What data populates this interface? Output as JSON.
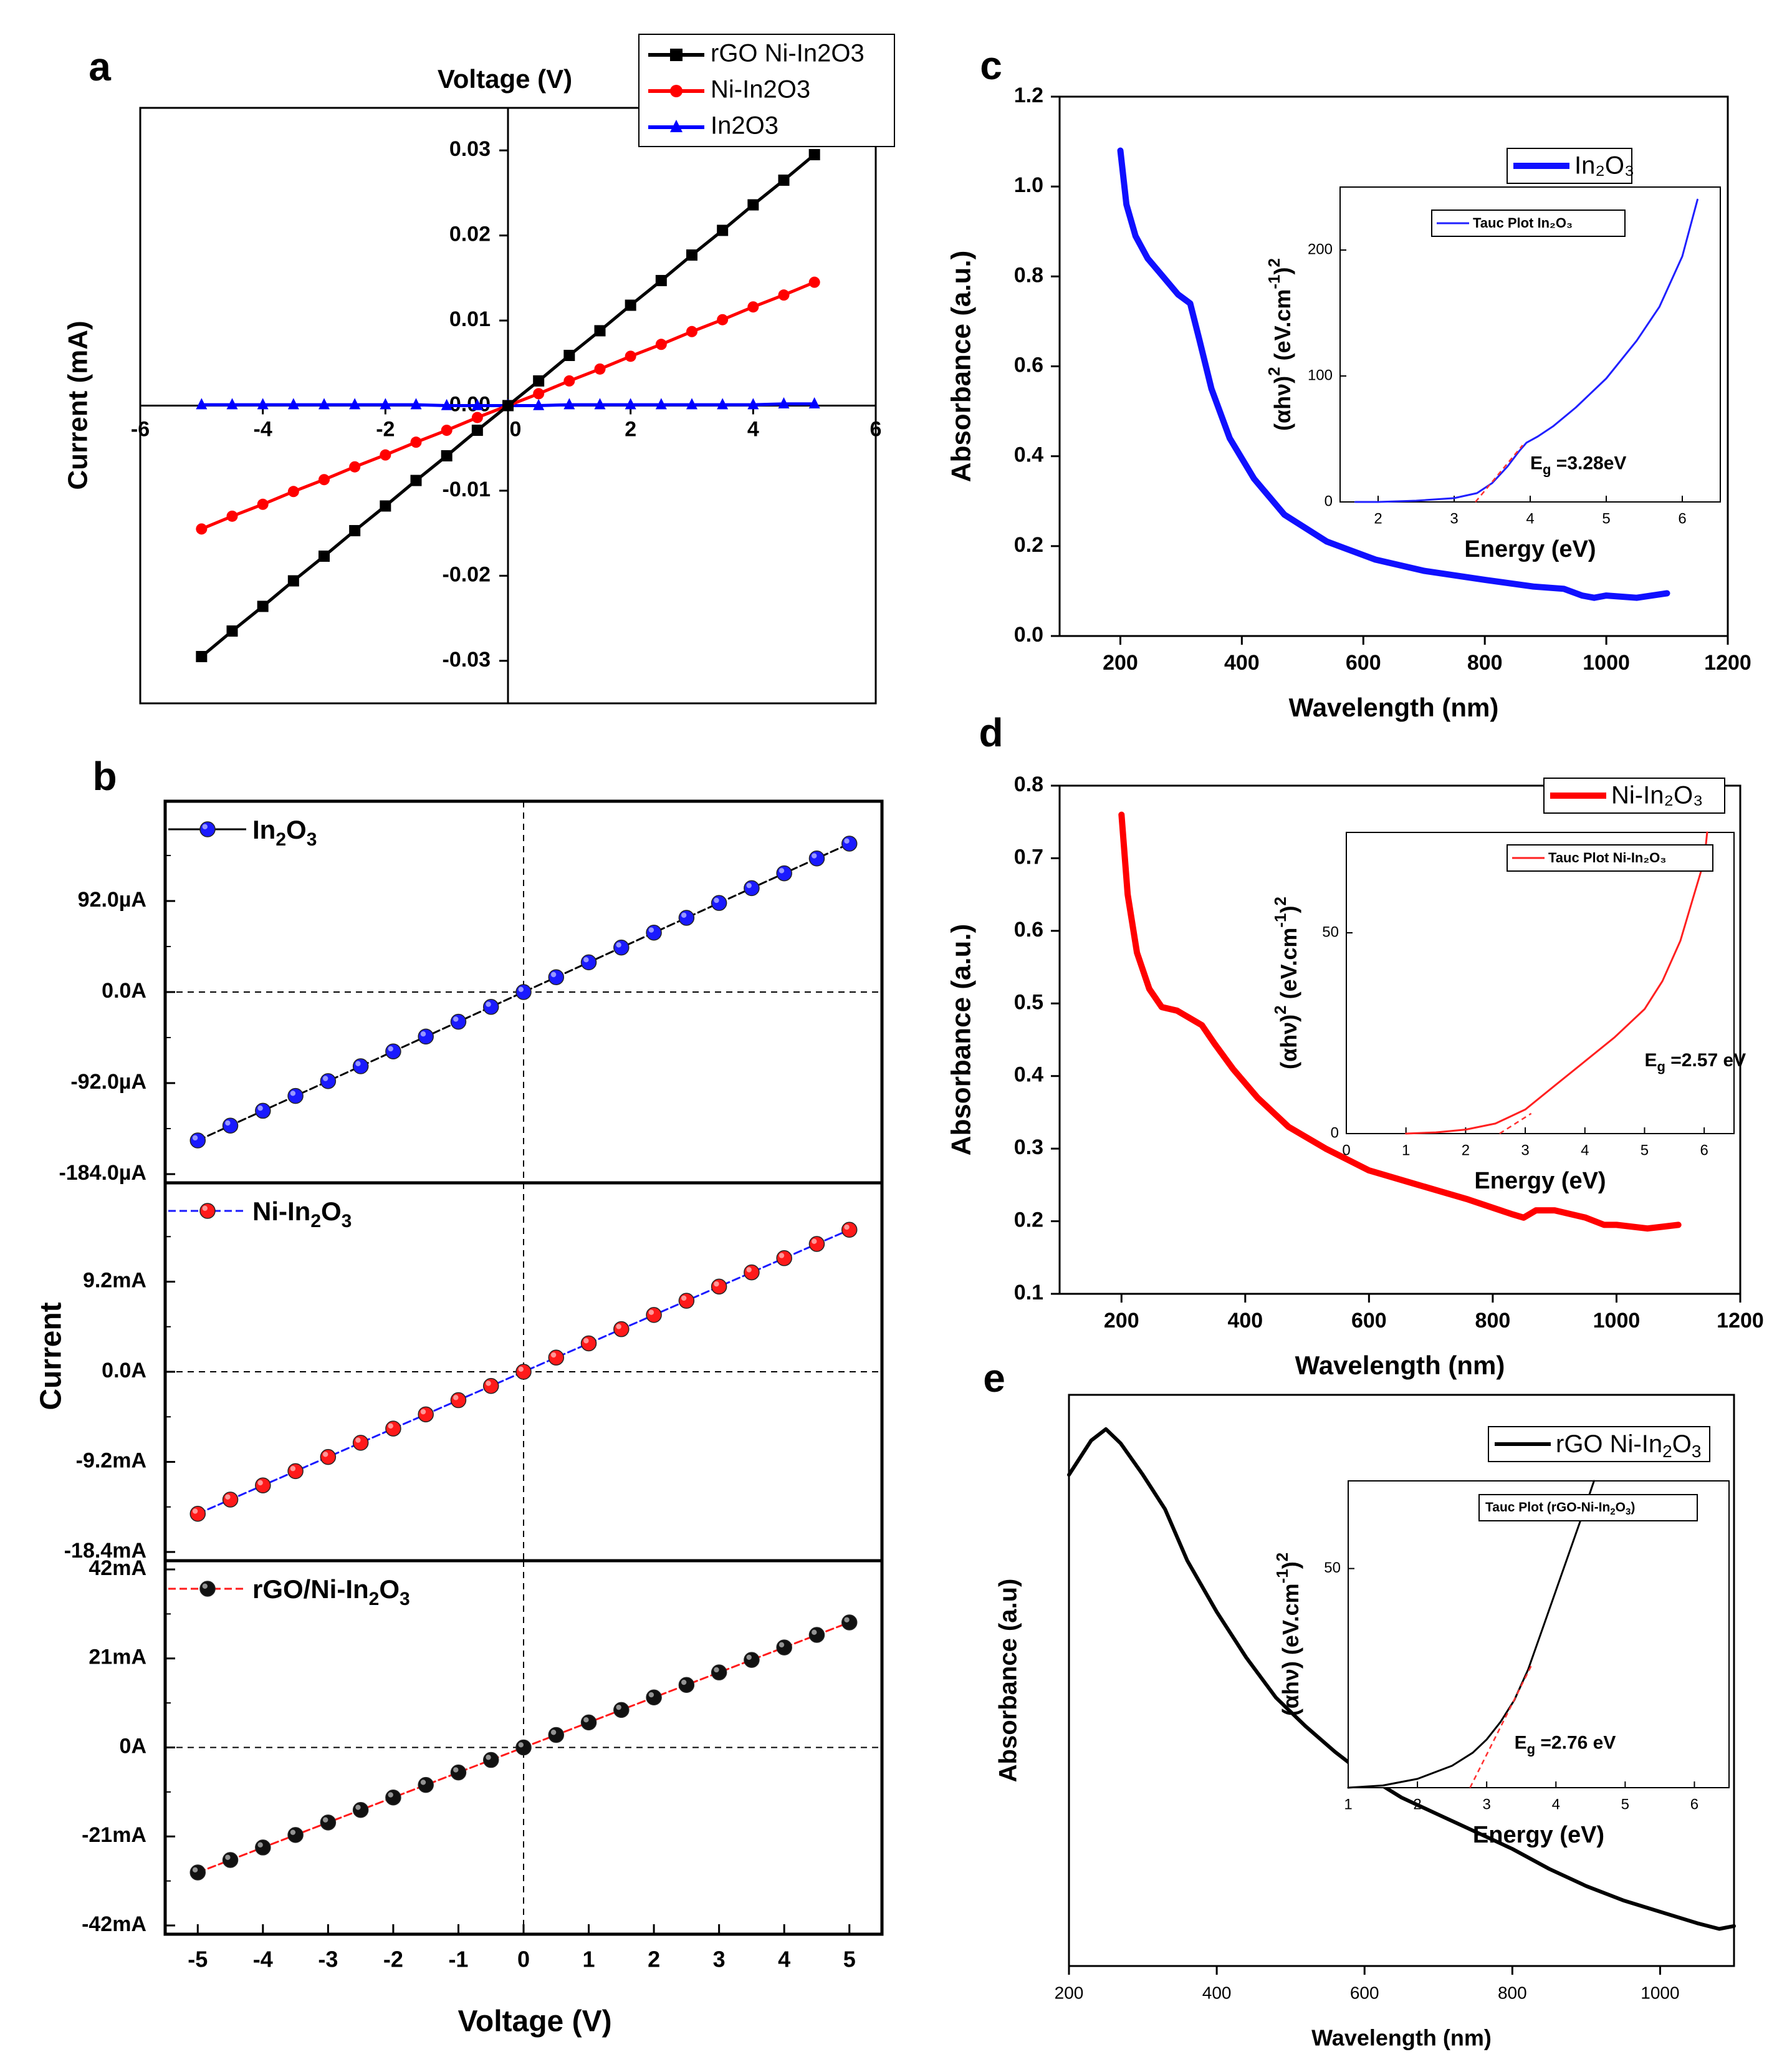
{
  "chart_data": [
    {
      "panel": "a",
      "type": "line",
      "title": "",
      "xlabel": "Voltage (V)",
      "ylabel": "Current (mA)",
      "xlim": [
        -6,
        6
      ],
      "ylim": [
        -0.035,
        0.035
      ],
      "xticks": [
        -6,
        -4,
        -2,
        0,
        2,
        4,
        6
      ],
      "xtick_labels": [
        "-6",
        "-4",
        "-2",
        "0",
        "2",
        "4",
        "6"
      ],
      "yticks": [
        -0.03,
        -0.02,
        -0.01,
        0,
        0.01,
        0.02,
        0.03
      ],
      "ytick_labels": [
        "-0.03",
        "-0.02",
        "-0.01",
        "0.00",
        "0.01",
        "0.02",
        "0.03"
      ],
      "grid": false,
      "legend_position": "top-right",
      "x": [
        -5,
        -4.5,
        -4,
        -3.5,
        -3,
        -2.5,
        -2,
        -1.5,
        -1,
        -0.5,
        0,
        0.5,
        1,
        1.5,
        2,
        2.5,
        3,
        3.5,
        4,
        4.5,
        5
      ],
      "series": [
        {
          "name": "rGO Ni-In2O3",
          "color": "#000000",
          "marker": "square",
          "values": [
            -0.0295,
            -0.0265,
            -0.0236,
            -0.0206,
            -0.0177,
            -0.0147,
            -0.0118,
            -0.0088,
            -0.0059,
            -0.0029,
            0,
            0.0029,
            0.0059,
            0.0088,
            0.0118,
            0.0147,
            0.0177,
            0.0206,
            0.0236,
            0.0265,
            0.0295
          ]
        },
        {
          "name": "Ni-In2O3",
          "color": "#ff0000",
          "marker": "circle",
          "values": [
            -0.0145,
            -0.013,
            -0.0116,
            -0.0101,
            -0.0087,
            -0.0072,
            -0.0058,
            -0.0043,
            -0.0029,
            -0.0014,
            0,
            0.0014,
            0.0029,
            0.0043,
            0.0058,
            0.0072,
            0.0087,
            0.0101,
            0.0116,
            0.013,
            0.0145
          ]
        },
        {
          "name": "In2O3",
          "color": "#0000ff",
          "marker": "triangle",
          "values": [
            0.0001,
            0.0001,
            0.0001,
            0.0001,
            0.0001,
            0.0001,
            0.0001,
            0.0001,
            0,
            0,
            0,
            0,
            0.0001,
            0.0001,
            0.0001,
            0.0001,
            0.0001,
            0.0001,
            0.0001,
            0.0002,
            0.0002
          ]
        }
      ]
    },
    {
      "panel": "b",
      "type": "scatter",
      "xlabel": "Voltage (V)",
      "ylabel": "Current",
      "xlim": [
        -5.5,
        5.5
      ],
      "xticks": [
        -5,
        -4,
        -3,
        -2,
        -1,
        0,
        1,
        2,
        3,
        4,
        5
      ],
      "xtick_labels": [
        "-5",
        "-4",
        "-3",
        "-2",
        "-1",
        "0",
        "1",
        "2",
        "3",
        "4",
        "5"
      ],
      "x": [
        -5,
        -4.5,
        -4,
        -3.5,
        -3,
        -2.5,
        -2,
        -1.5,
        -1,
        -0.5,
        0,
        0.5,
        1,
        1.5,
        2,
        2.5,
        3,
        3.5,
        4,
        4.5,
        5
      ],
      "subplots": [
        {
          "name": "In2O3",
          "legend_main": "In",
          "legend_s1": "2",
          "legend_m2": "O",
          "legend_s2": "3",
          "marker_color": "#1a1aff",
          "line_color": "#000000",
          "unit": "µA",
          "ylim": [
            -184,
            184
          ],
          "yticks": [
            -184,
            -92,
            0,
            92
          ],
          "ytick_labels": [
            "-184.0µA",
            "-92.0µA",
            "0.0A",
            "92.0µA"
          ],
          "values": [
            -150,
            -135,
            -120,
            -105,
            -90,
            -75,
            -60,
            -45,
            -30,
            -15,
            0,
            15,
            30,
            45,
            60,
            75,
            90,
            105,
            120,
            135,
            150
          ]
        },
        {
          "name": "Ni-In2O3",
          "legend_main": "Ni-In",
          "legend_s1": "2",
          "legend_m2": "O",
          "legend_s2": "3",
          "marker_color": "#ff1a1a",
          "line_color": "#1a1aff",
          "unit": "mA",
          "ylim": [
            -18.4,
            18.4
          ],
          "yticks": [
            -18.4,
            -9.2,
            0,
            9.2
          ],
          "ytick_labels": [
            "-18.4mA",
            "-9.2mA",
            "0.0A",
            "9.2mA"
          ],
          "values": [
            -14.5,
            -13.05,
            -11.6,
            -10.15,
            -8.7,
            -7.25,
            -5.8,
            -4.35,
            -2.9,
            -1.45,
            0,
            1.45,
            2.9,
            4.35,
            5.8,
            7.25,
            8.7,
            10.15,
            11.6,
            13.05,
            14.5
          ]
        },
        {
          "name": "rGO/Ni-In2O3",
          "legend_main": "rGO/Ni-In",
          "legend_s1": "2",
          "legend_m2": "O",
          "legend_s2": "3",
          "marker_color": "#111111",
          "line_color": "#ff1a1a",
          "unit": "mA",
          "ylim": [
            -42,
            42
          ],
          "yticks": [
            -42,
            -21,
            0,
            21,
            42
          ],
          "ytick_labels": [
            "-42mA",
            "-21mA",
            "0A",
            "21mA",
            "42mA"
          ],
          "values": [
            -29.5,
            -26.55,
            -23.6,
            -20.65,
            -17.7,
            -14.75,
            -11.8,
            -8.85,
            -5.9,
            -2.95,
            0,
            2.95,
            5.9,
            8.85,
            11.8,
            14.75,
            17.7,
            20.65,
            23.6,
            26.55,
            29.5
          ]
        }
      ]
    },
    {
      "panel": "c",
      "type": "line",
      "xlabel": "Wavelength (nm)",
      "ylabel": "Absorbance (a.u.)",
      "xlim": [
        100,
        1200
      ],
      "ylim": [
        0,
        1.2
      ],
      "xticks": [
        200,
        400,
        600,
        800,
        1000,
        1200
      ],
      "xtick_labels": [
        "200",
        "400",
        "600",
        "800",
        "1000",
        "1200"
      ],
      "yticks": [
        0,
        0.2,
        0.4,
        0.6,
        0.8,
        1.0,
        1.2
      ],
      "ytick_labels": [
        "0.0",
        "0.2",
        "0.4",
        "0.6",
        "0.8",
        "1.0",
        "1.2"
      ],
      "legend_position": "top-right",
      "series": [
        {
          "name": "In₂O₃",
          "color": "#1010ff",
          "x": [
            200,
            210,
            225,
            245,
            270,
            295,
            315,
            330,
            350,
            380,
            420,
            470,
            540,
            620,
            700,
            800,
            880,
            930,
            960,
            980,
            1000,
            1050,
            1100
          ],
          "values": [
            1.08,
            0.96,
            0.89,
            0.84,
            0.8,
            0.76,
            0.74,
            0.66,
            0.55,
            0.44,
            0.35,
            0.27,
            0.21,
            0.17,
            0.145,
            0.125,
            0.11,
            0.105,
            0.09,
            0.085,
            0.09,
            0.085,
            0.095
          ]
        }
      ],
      "inset": {
        "xlabel": "Energy (eV)",
        "ylabel": "(αhν)² (eV.cm⁻¹)²",
        "ylabel_pre": "(αhν)",
        "ylabel_mid": " (eV.cm",
        "ylabel_sup1": "2",
        "ylabel_sup2": "-1",
        "ylabel_post": ")",
        "ylabel_sup3": "2",
        "xlim": [
          1.5,
          6.5
        ],
        "ylim": [
          0,
          250
        ],
        "xticks": [
          2,
          3,
          4,
          5,
          6
        ],
        "xtick_labels": [
          "2",
          "3",
          "4",
          "5",
          "6"
        ],
        "yticks": [
          0,
          100,
          200
        ],
        "ytick_labels": [
          "0",
          "100",
          "200"
        ],
        "legend": "Tauc Plot In₂O₃",
        "annotation_main": "E",
        "annotation_sub": "g",
        "annotation_value": " =3.28eV",
        "series": [
          {
            "name": "Tauc Plot In₂O₃",
            "color": "#2020ff",
            "x": [
              1.7,
              2.0,
              2.5,
              3.0,
              3.3,
              3.5,
              3.7,
              3.85,
              3.95,
              4.1,
              4.3,
              4.6,
              5.0,
              5.4,
              5.7,
              6.0,
              6.2
            ],
            "values": [
              0,
              0,
              1,
              3,
              7,
              15,
              28,
              40,
              47,
              52,
              60,
              75,
              98,
              128,
              155,
              195,
              240
            ]
          }
        ]
      }
    },
    {
      "panel": "d",
      "type": "line",
      "xlabel": "Wavelength (nm)",
      "ylabel": "Absorbance (a.u.)",
      "xlim": [
        100,
        1200
      ],
      "ylim": [
        0.1,
        0.8
      ],
      "xticks": [
        200,
        400,
        600,
        800,
        1000,
        1200
      ],
      "xtick_labels": [
        "200",
        "400",
        "600",
        "800",
        "1000",
        "1200"
      ],
      "yticks": [
        0.1,
        0.2,
        0.3,
        0.4,
        0.5,
        0.6,
        0.7,
        0.8
      ],
      "ytick_labels": [
        "0.1",
        "0.2",
        "0.3",
        "0.4",
        "0.5",
        "0.6",
        "0.7",
        "0.8"
      ],
      "legend_position": "top-right",
      "series": [
        {
          "name": "Ni-In₂O₃",
          "color": "#ff0000",
          "x": [
            200,
            210,
            225,
            245,
            265,
            290,
            310,
            330,
            350,
            380,
            420,
            470,
            530,
            600,
            680,
            760,
            830,
            850,
            870,
            900,
            950,
            980,
            1000,
            1050,
            1100
          ],
          "values": [
            0.76,
            0.65,
            0.57,
            0.52,
            0.495,
            0.49,
            0.48,
            0.47,
            0.445,
            0.41,
            0.37,
            0.33,
            0.3,
            0.27,
            0.25,
            0.23,
            0.21,
            0.205,
            0.215,
            0.215,
            0.205,
            0.195,
            0.195,
            0.19,
            0.195
          ]
        }
      ],
      "inset": {
        "xlabel": "Energy (eV)",
        "ylabel": "(αhν)² (eV.cm⁻¹)²",
        "ylabel_pre": "(αhν)",
        "ylabel_mid": " (eV.cm",
        "ylabel_sup1": "2",
        "ylabel_sup2": "-1",
        "ylabel_post": ")",
        "ylabel_sup3": "2",
        "xlim": [
          0,
          6.5
        ],
        "ylim": [
          0,
          75
        ],
        "xticks": [
          0,
          1,
          2,
          3,
          4,
          5,
          6
        ],
        "xtick_labels": [
          "0",
          "1",
          "2",
          "3",
          "4",
          "5",
          "6"
        ],
        "yticks": [
          0,
          50
        ],
        "ytick_labels": [
          "0",
          "50"
        ],
        "legend": "Tauc Plot Ni-In₂O₃",
        "annotation_main": "E",
        "annotation_sub": "g",
        "annotation_value": " =2.57 eV",
        "series": [
          {
            "name": "Tauc Plot Ni-In₂O₃",
            "color": "#ff2020",
            "x": [
              1.0,
              1.5,
              2.0,
              2.5,
              3.0,
              3.5,
              4.0,
              4.5,
              5.0,
              5.3,
              5.6,
              5.8,
              6.0,
              6.05
            ],
            "values": [
              0,
              0.3,
              1,
              2.5,
              6,
              12,
              18,
              24,
              31,
              38,
              48,
              58,
              68,
              75
            ]
          }
        ]
      }
    },
    {
      "panel": "e",
      "type": "line",
      "xlabel": "Wavelength (nm)",
      "ylabel": "Absorbance (a.u)",
      "xlim": [
        200,
        1100
      ],
      "ylim": [
        0,
        1
      ],
      "xticks": [
        200,
        400,
        600,
        800,
        1000
      ],
      "xtick_labels": [
        "200",
        "400",
        "600",
        "800",
        "1000"
      ],
      "legend_position": "top-right",
      "series": [
        {
          "name": "rGO Ni-In₂O₃",
          "color": "#000000",
          "x": [
            200,
            215,
            230,
            250,
            270,
            300,
            330,
            340,
            360,
            400,
            440,
            480,
            520,
            560,
            600,
            650,
            700,
            750,
            800,
            850,
            900,
            950,
            1000,
            1050,
            1080,
            1100
          ],
          "values": [
            0.86,
            0.89,
            0.92,
            0.94,
            0.915,
            0.86,
            0.8,
            0.77,
            0.71,
            0.62,
            0.54,
            0.47,
            0.42,
            0.375,
            0.335,
            0.295,
            0.265,
            0.235,
            0.205,
            0.17,
            0.14,
            0.115,
            0.095,
            0.075,
            0.065,
            0.07
          ]
        }
      ],
      "inset": {
        "xlabel": "Energy (eV)",
        "ylabel": "(αhν) (eV.cm⁻¹)²",
        "ylabel_pre": "(αhν)",
        "ylabel_mid": " (eV.cm",
        "ylabel_sup1": "",
        "ylabel_sup2": "-1",
        "ylabel_post": ")",
        "ylabel_sup3": "2",
        "xlim": [
          1,
          6.5
        ],
        "ylim": [
          0,
          70
        ],
        "xticks": [
          1,
          2,
          3,
          4,
          5,
          6
        ],
        "xtick_labels": [
          "1",
          "2",
          "3",
          "4",
          "5",
          "6"
        ],
        "yticks": [
          50
        ],
        "ytick_labels": [
          "50"
        ],
        "legend_main": "Tauc Plot (rGO-Ni-In",
        "legend_s1": "2",
        "legend_m2": "O",
        "legend_s2": "3",
        "legend_end": ")",
        "annotation_main": "E",
        "annotation_sub": "g",
        "annotation_value": " =2.76 eV",
        "series": [
          {
            "name": "Tauc Plot (rGO-Ni-In₂O₃)",
            "color": "#000000",
            "x": [
              1.0,
              1.5,
              2.0,
              2.5,
              2.8,
              3.0,
              3.2,
              3.4,
              3.6,
              3.8,
              4.0,
              4.2,
              4.4,
              4.55
            ],
            "values": [
              0,
              0.5,
              2,
              5,
              8,
              11,
              15,
              20,
              27,
              36,
              45,
              54,
              63,
              70
            ]
          }
        ]
      }
    }
  ],
  "panel_labels": [
    "a",
    "b",
    "c",
    "d",
    "e"
  ]
}
